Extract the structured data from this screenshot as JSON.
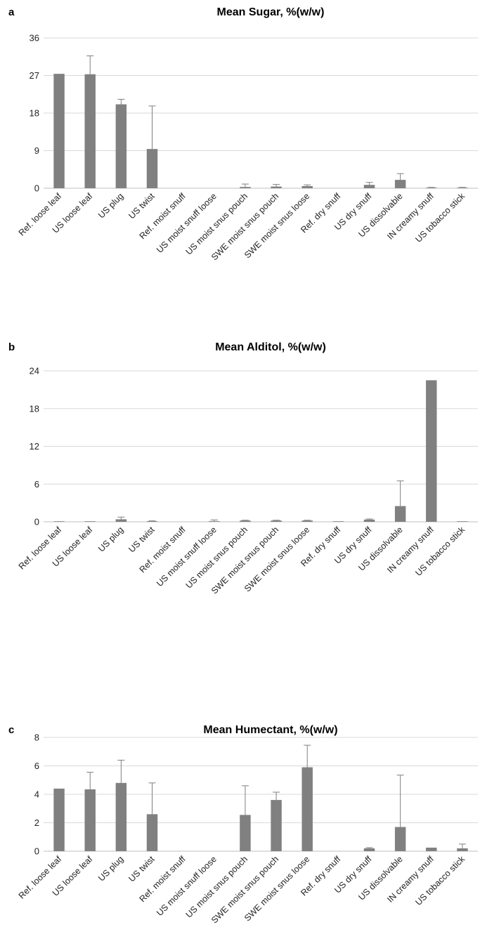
{
  "chart_data": [
    {
      "type": "bar",
      "panel": "a",
      "title": "Mean Sugar, %(w/w)",
      "xlabel": "",
      "ylabel": "",
      "ylim": [
        0,
        36
      ],
      "yticks": [
        0,
        9,
        18,
        27,
        36
      ],
      "grid": true,
      "bar_color": "#808080",
      "categories": [
        "Ref. loose leaf",
        "US loose leaf",
        "US plug",
        "US twist",
        "Ref. moist snuff",
        "US moist snuff loose",
        "US moist snus pouch",
        "SWE moist snus pouch",
        "SWE moist snus loose",
        "Ref. dry snuff",
        "US dry snuff",
        "US dissolvable",
        "IN creamy snuff",
        "US tobacco stick"
      ],
      "values": [
        27.4,
        27.3,
        20.1,
        9.4,
        0,
        0,
        0.3,
        0.4,
        0.5,
        0,
        0.8,
        2.0,
        0.1,
        0.1
      ],
      "errors": [
        0,
        4.4,
        1.2,
        10.3,
        0,
        0,
        0.7,
        0.5,
        0.3,
        0,
        0.6,
        1.5,
        0.1,
        0.1
      ]
    },
    {
      "type": "bar",
      "panel": "b",
      "title": "Mean Alditol, %(w/w)",
      "xlabel": "",
      "ylabel": "",
      "ylim": [
        0,
        24
      ],
      "yticks": [
        0,
        6,
        12,
        18,
        24
      ],
      "grid": true,
      "bar_color": "#808080",
      "categories": [
        "Ref. loose leaf",
        "US loose leaf",
        "US plug",
        "US twist",
        "Ref. moist snuff",
        "US moist snuff loose",
        "US moist snus pouch",
        "SWE moist snus pouch",
        "SWE moist snus loose",
        "Ref. dry snuff",
        "US dry snuff",
        "US dissolvable",
        "IN creamy snuff",
        "US tobacco stick"
      ],
      "values": [
        0.05,
        0.05,
        0.4,
        0.1,
        0,
        0.1,
        0.2,
        0.2,
        0.2,
        0.05,
        0.35,
        2.5,
        22.5,
        0.05
      ],
      "errors": [
        0,
        0,
        0.35,
        0.05,
        0,
        0.2,
        0.05,
        0.05,
        0.05,
        0,
        0.1,
        4.0,
        0,
        0
      ]
    },
    {
      "type": "bar",
      "panel": "c",
      "title": "Mean Humectant, %(w/w)",
      "xlabel": "",
      "ylabel": "",
      "ylim": [
        0,
        8
      ],
      "yticks": [
        0,
        2,
        4,
        6,
        8
      ],
      "grid": true,
      "bar_color": "#808080",
      "categories": [
        "Ref. loose leaf",
        "US loose leaf",
        "US plug",
        "US twist",
        "Ref. moist snuff",
        "US moist snuff loose",
        "US moist snus pouch",
        "SWE moist snus pouch",
        "SWE moist snus loose",
        "Ref. dry snuff",
        "US dry snuff",
        "US dissolvable",
        "IN creamy snuff",
        "US tobacco stick"
      ],
      "values": [
        4.4,
        4.35,
        4.8,
        2.6,
        0,
        0,
        2.55,
        3.6,
        5.9,
        0,
        0.2,
        1.7,
        0.25,
        0.2
      ],
      "errors": [
        0,
        1.2,
        1.6,
        2.2,
        0,
        0,
        2.05,
        0.55,
        1.55,
        0,
        0.05,
        3.65,
        0,
        0.3
      ]
    }
  ]
}
